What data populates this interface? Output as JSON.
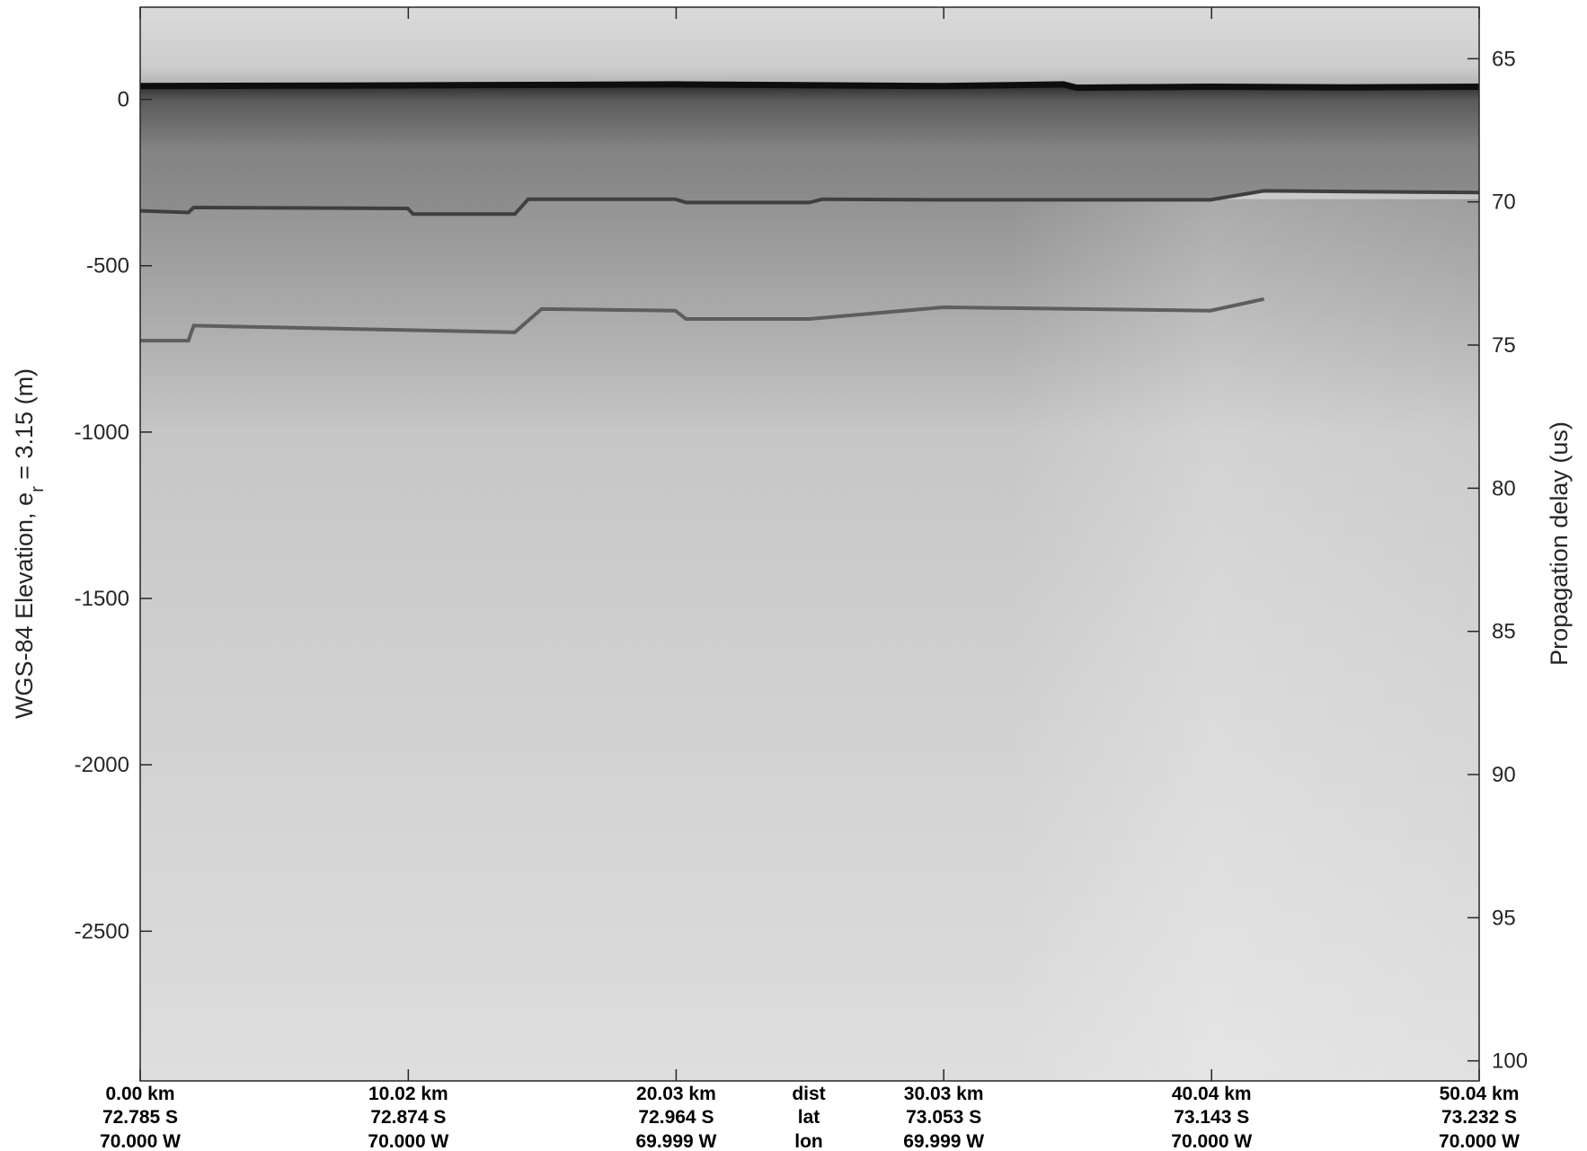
{
  "chart_data": {
    "type": "heatmap",
    "colormap": "grayscale",
    "left_axis": {
      "label_main": "WGS-84 Elevation, e",
      "label_sub": "r",
      "label_tail": " = 3.15 (m)",
      "ticks": [
        0,
        -500,
        -1000,
        -1500,
        -2000,
        -2500
      ],
      "tick_labels": [
        "0",
        "-500",
        "-1000",
        "-1500",
        "-2000",
        "-2500"
      ],
      "range": [
        277,
        -2950
      ]
    },
    "right_axis": {
      "label": "Propagation delay (us)",
      "ticks": [
        65,
        70,
        75,
        80,
        85,
        90,
        95,
        100
      ],
      "tick_labels": [
        "65",
        "70",
        "75",
        "80",
        "85",
        "90",
        "95",
        "100"
      ],
      "range": [
        63.2,
        100.7
      ]
    },
    "x_axis": {
      "range_km": [
        0,
        50.04
      ],
      "row_titles": [
        "dist",
        "lat",
        "lon"
      ],
      "ticks": [
        {
          "km": 0.0,
          "dist": "0.00 km",
          "lat": "72.785 S",
          "lon": "70.000 W"
        },
        {
          "km": 10.02,
          "dist": "10.02 km",
          "lat": "72.874 S",
          "lon": "70.000 W"
        },
        {
          "km": 20.03,
          "dist": "20.03 km",
          "lat": "72.964 S",
          "lon": "69.999 W"
        },
        {
          "km": 30.03,
          "dist": "30.03 km",
          "lat": "73.053 S",
          "lon": "69.999 W"
        },
        {
          "km": 40.04,
          "dist": "40.04 km",
          "lat": "73.143 S",
          "lon": "70.000 W"
        },
        {
          "km": 50.04,
          "dist": "50.04 km",
          "lat": "73.232 S",
          "lon": "70.000 W"
        }
      ]
    },
    "surface_elevation_m": {
      "x_km": [
        0,
        10,
        20,
        30,
        34.5,
        35,
        40,
        45,
        50.04
      ],
      "y": [
        40,
        42,
        45,
        40,
        45,
        35,
        38,
        36,
        38
      ]
    },
    "bed_elevation_m": {
      "x_km": [
        0,
        1.8,
        2,
        10,
        10.2,
        14,
        14.5,
        20,
        20.4,
        25,
        25.5,
        30,
        40,
        42,
        50.04
      ],
      "y": [
        -335,
        -340,
        -325,
        -328,
        -345,
        -345,
        -300,
        -300,
        -310,
        -310,
        -300,
        -302,
        -302,
        -275,
        -280
      ]
    },
    "internal_layer_m": {
      "x_km": [
        0,
        1.8,
        2,
        14,
        15,
        20,
        20.4,
        25,
        30,
        40,
        42
      ],
      "y": [
        -725,
        -725,
        -680,
        -700,
        -630,
        -635,
        -660,
        -660,
        -625,
        -635,
        -600
      ]
    }
  }
}
